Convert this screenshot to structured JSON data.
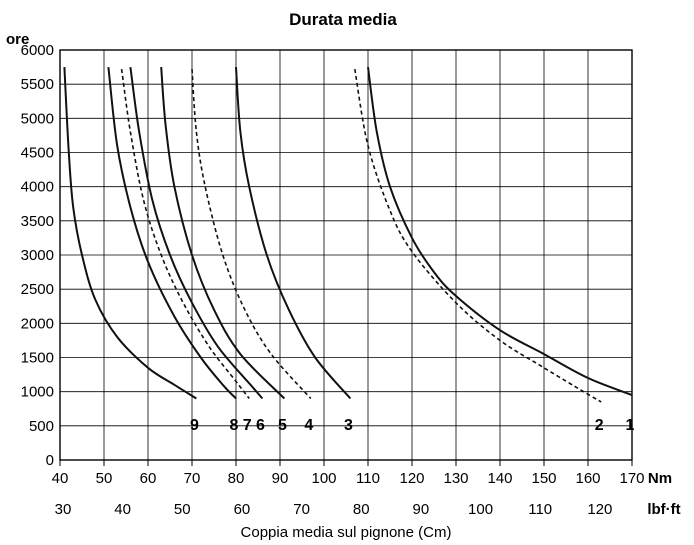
{
  "chart_data": {
    "type": "line",
    "title": "Durata media",
    "ylabel": "ore",
    "xlabel": "Coppia media sul pignone (Cm)",
    "x_unit": "Nm",
    "x2_unit": "lbf·ft",
    "xlim": [
      40,
      170
    ],
    "ylim": [
      0,
      6000
    ],
    "x_ticks": [
      40,
      50,
      60,
      70,
      80,
      90,
      100,
      110,
      120,
      130,
      140,
      150,
      160,
      170
    ],
    "x2_ticks": [
      30,
      40,
      50,
      60,
      70,
      80,
      90,
      100,
      110,
      120
    ],
    "y_ticks": [
      0,
      500,
      1000,
      1500,
      2000,
      2500,
      3000,
      3500,
      4000,
      4500,
      5000,
      5500,
      6000
    ],
    "grid": true,
    "series": [
      {
        "name": "1",
        "style": "solid",
        "points": [
          [
            110,
            5750
          ],
          [
            112,
            4800
          ],
          [
            115,
            4000
          ],
          [
            120,
            3250
          ],
          [
            125,
            2750
          ],
          [
            130,
            2400
          ],
          [
            140,
            1900
          ],
          [
            150,
            1550
          ],
          [
            160,
            1200
          ],
          [
            170,
            950
          ]
        ]
      },
      {
        "name": "2",
        "style": "dashed",
        "points": [
          [
            107,
            5720
          ],
          [
            110,
            4600
          ],
          [
            115,
            3650
          ],
          [
            120,
            3050
          ],
          [
            130,
            2300
          ],
          [
            140,
            1750
          ],
          [
            150,
            1350
          ],
          [
            159,
            1000
          ],
          [
            163,
            850
          ]
        ]
      },
      {
        "name": "3",
        "style": "solid",
        "points": [
          [
            80,
            5750
          ],
          [
            81,
            4800
          ],
          [
            83,
            4000
          ],
          [
            87,
            3000
          ],
          [
            92,
            2200
          ],
          [
            98,
            1500
          ],
          [
            106,
            900
          ]
        ]
      },
      {
        "name": "4",
        "style": "dashed",
        "points": [
          [
            70,
            5720
          ],
          [
            71,
            4800
          ],
          [
            73,
            4000
          ],
          [
            77,
            3000
          ],
          [
            82,
            2200
          ],
          [
            88,
            1550
          ],
          [
            97,
            900
          ]
        ]
      },
      {
        "name": "5",
        "style": "solid",
        "points": [
          [
            63,
            5750
          ],
          [
            64,
            4900
          ],
          [
            66,
            4000
          ],
          [
            70,
            3000
          ],
          [
            75,
            2200
          ],
          [
            81,
            1550
          ],
          [
            91,
            900
          ]
        ]
      },
      {
        "name": "6",
        "style": "solid",
        "points": [
          [
            56,
            5750
          ],
          [
            58,
            4800
          ],
          [
            61,
            3800
          ],
          [
            65,
            3000
          ],
          [
            70,
            2300
          ],
          [
            76,
            1650
          ],
          [
            84,
            1050
          ],
          [
            86,
            900
          ]
        ]
      },
      {
        "name": "7",
        "style": "dashed",
        "points": [
          [
            54,
            5720
          ],
          [
            56,
            4800
          ],
          [
            59,
            3800
          ],
          [
            63,
            3000
          ],
          [
            68,
            2300
          ],
          [
            74,
            1650
          ],
          [
            80,
            1150
          ],
          [
            83,
            900
          ]
        ]
      },
      {
        "name": "8",
        "style": "solid",
        "points": [
          [
            51,
            5750
          ],
          [
            53,
            4600
          ],
          [
            56,
            3700
          ],
          [
            60,
            2900
          ],
          [
            66,
            2100
          ],
          [
            72,
            1500
          ],
          [
            77,
            1100
          ],
          [
            80,
            900
          ]
        ]
      },
      {
        "name": "9",
        "style": "solid",
        "points": [
          [
            41,
            5750
          ],
          [
            42,
            4500
          ],
          [
            43,
            3700
          ],
          [
            45,
            3000
          ],
          [
            48,
            2350
          ],
          [
            53,
            1800
          ],
          [
            60,
            1350
          ],
          [
            66,
            1100
          ],
          [
            71,
            900
          ]
        ]
      }
    ]
  }
}
